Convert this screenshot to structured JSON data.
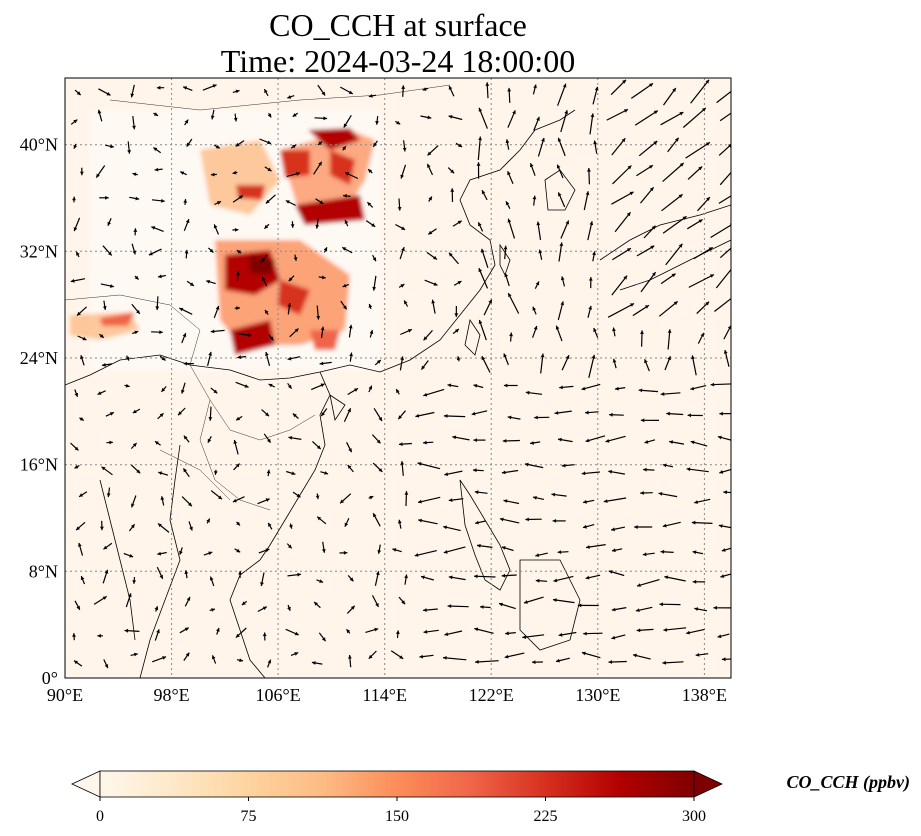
{
  "title": {
    "line1": "CO_CCH at surface",
    "line2": "Time: 2024-03-24 18:00:00"
  },
  "map": {
    "lon_ticks": [
      "90°E",
      "98°E",
      "106°E",
      "114°E",
      "122°E",
      "130°E",
      "138°E"
    ],
    "lat_ticks": [
      "0°",
      "8°N",
      "16°N",
      "24°N",
      "32°N",
      "40°N"
    ],
    "extent": {
      "lon_min": 90,
      "lon_max": 140,
      "lat_min": 0,
      "lat_max": 45
    },
    "gridlines": true,
    "background_color": "#fff5eb"
  },
  "colorbar": {
    "label": "CO_CCH (ppbv)",
    "ticks": [
      "0",
      "75",
      "150",
      "225",
      "300"
    ],
    "min": 0,
    "max": 300,
    "colormap": "OrRd",
    "extend": "both",
    "colors": [
      "#fff7ec",
      "#fee8c8",
      "#fdd49e",
      "#fdbb84",
      "#fc8d59",
      "#ef6548",
      "#d7301f",
      "#b30000",
      "#7f0000"
    ]
  }
}
